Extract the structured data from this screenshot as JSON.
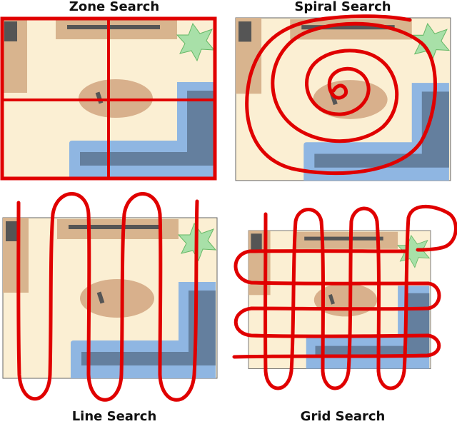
{
  "titles": {
    "zone": "Zone Search",
    "spiral": "Spiral Search",
    "line": "Line Search",
    "grid": "Grid Search"
  },
  "colors": {
    "floor": "#fbefd3",
    "furniture_tan": "#d8b48e",
    "rug": "#d8b08c",
    "sofa_light": "#8fb6e2",
    "sofa_dark": "#647f9e",
    "plant": "#a8e0a8",
    "plant_edge": "#66b866",
    "dark_item": "#555555",
    "search_path": "#e00000",
    "border": "#666666"
  },
  "icons": [
    "plant-icon",
    "remote-icon",
    "tv-icon"
  ]
}
